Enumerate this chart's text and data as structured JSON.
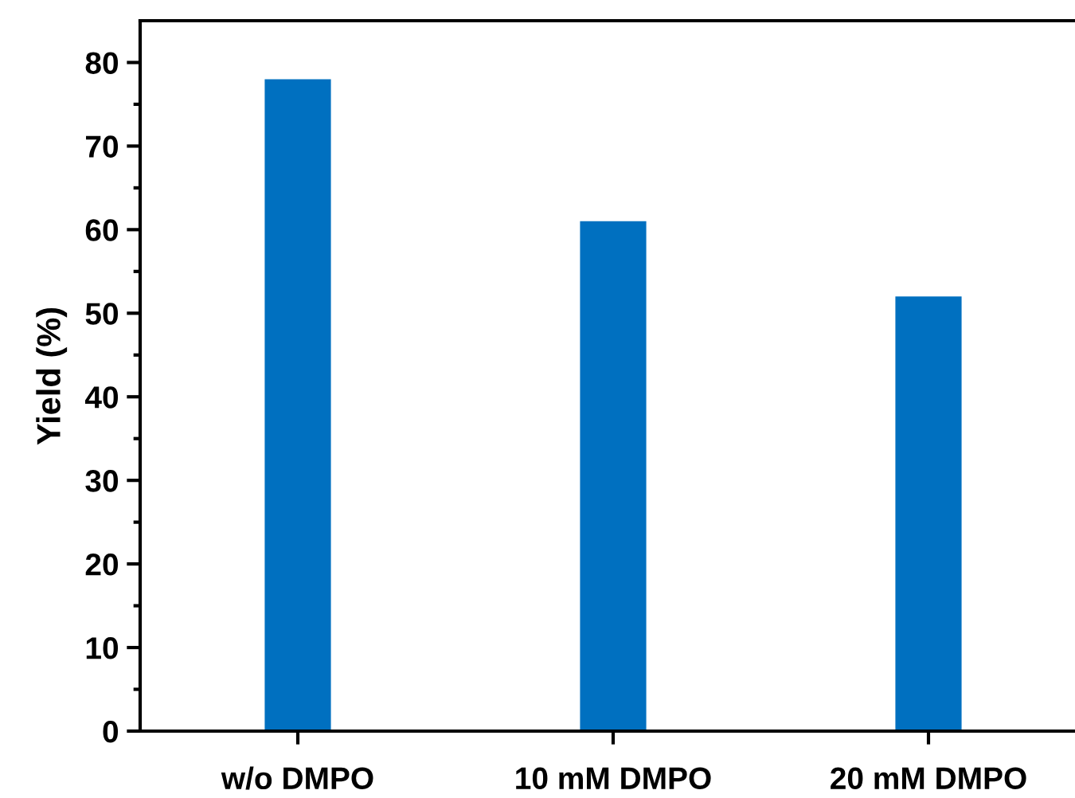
{
  "chart_data": {
    "type": "bar",
    "ylabel": "Yield (%)",
    "categories": [
      "w/o DMPO",
      "10 mM DMPO",
      "20 mM DMPO"
    ],
    "values": [
      78,
      61,
      52
    ],
    "color": "#0070c0",
    "ylim": [
      0,
      85
    ],
    "yticks": [
      0,
      10,
      20,
      30,
      40,
      50,
      60,
      70,
      80
    ],
    "grid": false
  }
}
